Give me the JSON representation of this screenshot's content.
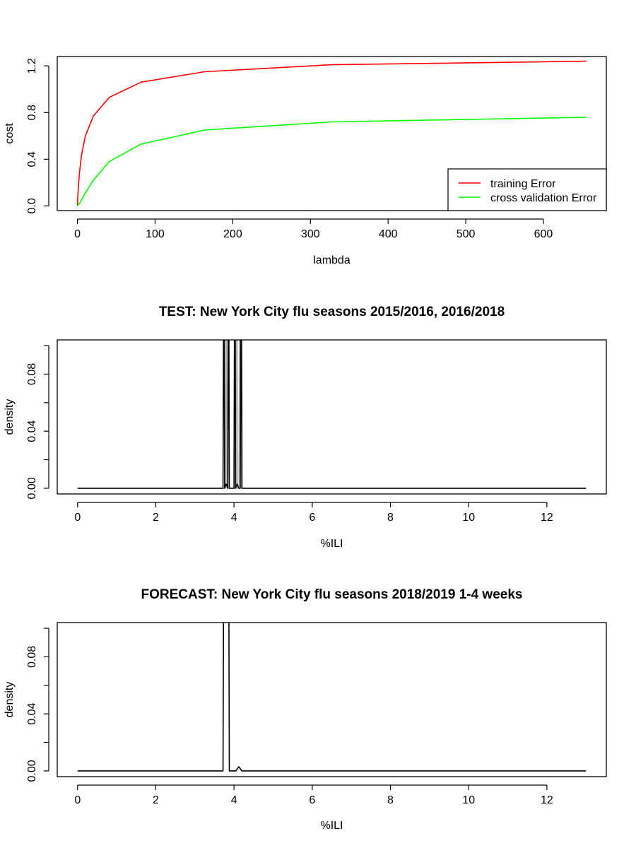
{
  "chart_data": [
    {
      "id": "cost",
      "type": "line",
      "title": "",
      "xlabel": "lambda",
      "ylabel": "cost",
      "xlim": [
        -26,
        681
      ],
      "ylim": [
        -0.04,
        1.28
      ],
      "xticks": [
        0,
        100,
        200,
        300,
        400,
        500,
        600
      ],
      "yticks": [
        0.0,
        0.4,
        0.8,
        1.2
      ],
      "ytick_labels": [
        "0.0",
        "0.4",
        "0.8",
        "1.2"
      ],
      "legend_position": "bottom-right",
      "series": [
        {
          "name": "training Error",
          "color": "#ff0000",
          "x": [
            0,
            0.01,
            0.02,
            0.04,
            0.08,
            0.16,
            0.32,
            0.64,
            1.28,
            2.56,
            5.12,
            10.24,
            20.48,
            40.96,
            81.92,
            163.84,
            327.68,
            655.36
          ],
          "y": [
            0.0,
            0.001,
            0.003,
            0.006,
            0.012,
            0.025,
            0.05,
            0.1,
            0.17,
            0.28,
            0.43,
            0.6,
            0.77,
            0.93,
            1.06,
            1.15,
            1.21,
            1.24
          ]
        },
        {
          "name": "cross validation Error",
          "color": "#00ff00",
          "x": [
            0,
            0.01,
            0.02,
            0.04,
            0.08,
            0.16,
            0.32,
            0.64,
            1.28,
            2.56,
            5.12,
            10.24,
            20.48,
            40.96,
            81.92,
            163.84,
            327.68,
            655.36
          ],
          "y": [
            0.0,
            0.0,
            0.001,
            0.001,
            0.002,
            0.003,
            0.005,
            0.008,
            0.012,
            0.02,
            0.05,
            0.11,
            0.22,
            0.38,
            0.53,
            0.65,
            0.72,
            0.76
          ]
        }
      ]
    },
    {
      "id": "test",
      "type": "line",
      "title": "TEST: New York City  flu seasons 2015/2016, 2016/2018",
      "xlabel": "%ILI",
      "ylabel": "density",
      "xlim": [
        -0.52,
        13.52
      ],
      "ylim": [
        -0.004,
        0.104
      ],
      "xticks": [
        0,
        2,
        4,
        6,
        8,
        10,
        12
      ],
      "yticks": [
        0.0,
        0.02,
        0.04,
        0.06,
        0.08,
        0.1
      ],
      "ytick_labels": [
        "0.00",
        "",
        "0.04",
        "",
        "0.08",
        ""
      ],
      "series": [
        {
          "name": "",
          "color": "#b0b0b0",
          "x": [
            0,
            3.78,
            3.8,
            3.82,
            3.9,
            4.05,
            4.07,
            4.09,
            4.11,
            4.13,
            4.15,
            4.19,
            4.21,
            13
          ],
          "y": [
            0,
            0,
            0.2,
            0,
            0,
            0,
            0.2,
            0,
            0,
            0,
            0.2,
            0.2,
            0,
            0
          ]
        },
        {
          "name": "",
          "color": "#000000",
          "x": [
            0,
            3.72,
            3.74,
            3.76,
            3.8,
            3.84,
            3.86,
            3.88,
            4.0,
            4.02,
            4.04,
            4.08,
            4.12,
            4.16,
            4.18,
            4.2,
            13
          ],
          "y": [
            0,
            0,
            0.2,
            0,
            0.003,
            0,
            0.2,
            0,
            0,
            0.2,
            0,
            0.003,
            0,
            0,
            0.2,
            0,
            0
          ]
        }
      ]
    },
    {
      "id": "forecast",
      "type": "line",
      "title": "FORECAST: New York City flu seasons 2018/2019 1-4 weeks",
      "xlabel": "%ILI",
      "ylabel": "density",
      "xlim": [
        -0.52,
        13.52
      ],
      "ylim": [
        -0.004,
        0.104
      ],
      "xticks": [
        0,
        2,
        4,
        6,
        8,
        10,
        12
      ],
      "yticks": [
        0.0,
        0.02,
        0.04,
        0.06,
        0.08,
        0.1
      ],
      "ytick_labels": [
        "0.00",
        "",
        "0.04",
        "",
        "0.08",
        ""
      ],
      "series": [
        {
          "name": "",
          "color": "#000000",
          "x": [
            0,
            3.72,
            3.74,
            3.86,
            3.88,
            4.05,
            4.12,
            4.2,
            13
          ],
          "y": [
            0,
            0,
            0.2,
            0.2,
            0,
            0,
            0.003,
            0,
            0
          ]
        }
      ]
    }
  ]
}
